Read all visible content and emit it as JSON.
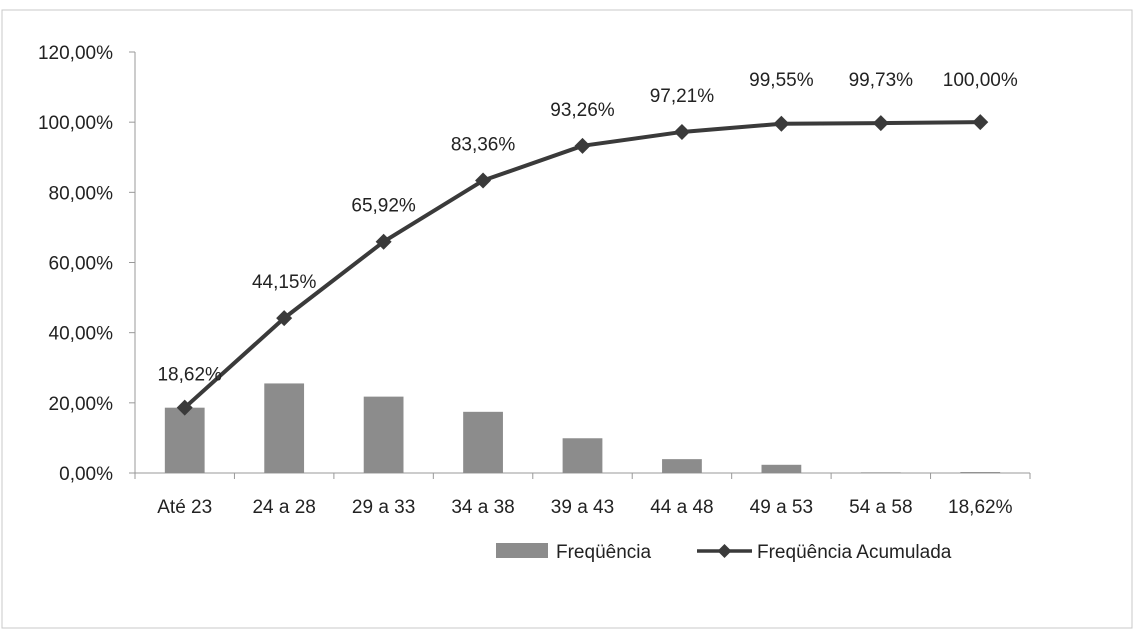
{
  "chart_data": {
    "type": "bar",
    "categories": [
      "Até 23",
      "24 a 28",
      "29 a 33",
      "34 a 38",
      "39 a 43",
      "44 a 48",
      "49 a 53",
      "54 a 58",
      "18,62%"
    ],
    "series": [
      {
        "name": "Freqüência",
        "type": "bar",
        "values": [
          18.62,
          25.53,
          21.77,
          17.44,
          9.9,
          3.95,
          2.34,
          0.18,
          0.27
        ]
      },
      {
        "name": "Freqüência Acumulada",
        "type": "line",
        "marker": "diamond",
        "values": [
          18.62,
          44.15,
          65.92,
          83.36,
          93.26,
          97.21,
          99.55,
          99.73,
          100.0
        ],
        "labels": [
          "18,62%",
          "44,15%",
          "65,92%",
          "83,36%",
          "93,26%",
          "97,21%",
          "99,55%",
          "99,73%",
          "100,00%"
        ]
      }
    ],
    "y_ticks": [
      "0,00%",
      "20,00%",
      "40,00%",
      "60,00%",
      "80,00%",
      "100,00%",
      "120,00%"
    ],
    "ylim": [
      0,
      120
    ],
    "legend_position": "bottom-right",
    "grid": false,
    "colors": {
      "bar": "#8c8c8c",
      "line": "#3a3a3a",
      "axis": "#999999",
      "frame": "#c8c8c8"
    }
  }
}
